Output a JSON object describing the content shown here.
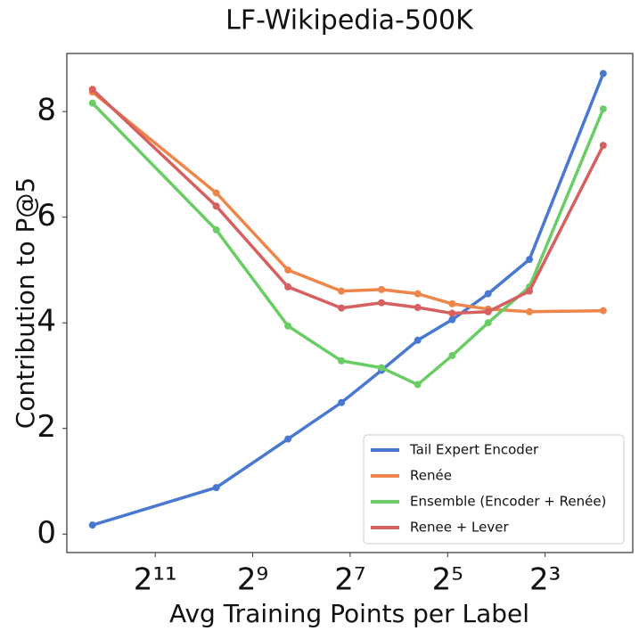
{
  "chart_data": {
    "type": "line",
    "title": "LF-Wikipedia-500K",
    "xlabel": "Avg Training Points per Label",
    "ylabel": "Contribution to P@5",
    "x": [
      5000,
      860,
      310,
      145,
      82,
      49,
      30,
      18,
      10,
      3.5
    ],
    "xscale": "log2",
    "xlim": [
      7200,
      2.3
    ],
    "xticks": [
      {
        "value": 2048,
        "label": "2¹¹"
      },
      {
        "value": 512,
        "label": "2⁹"
      },
      {
        "value": 128,
        "label": "2⁷"
      },
      {
        "value": 32,
        "label": "2⁵"
      },
      {
        "value": 8,
        "label": "2³"
      }
    ],
    "ylim": [
      -0.35,
      9.1
    ],
    "yticks": [
      0,
      2,
      4,
      6,
      8
    ],
    "grid": false,
    "legend": "lower right",
    "series": [
      {
        "name": "Tail Expert Encoder",
        "color": "#4878d0",
        "values": [
          0.17,
          0.88,
          1.8,
          2.49,
          3.1,
          3.67,
          4.06,
          4.55,
          5.2,
          8.72
        ]
      },
      {
        "name": "Renée",
        "color": "#ee854a",
        "values": [
          8.37,
          6.46,
          5.0,
          4.6,
          4.63,
          4.55,
          4.36,
          4.26,
          4.21,
          4.23
        ]
      },
      {
        "name": "Ensemble (Encoder + Renée)",
        "color": "#6acc64",
        "values": [
          8.16,
          5.76,
          3.94,
          3.28,
          3.15,
          2.83,
          3.38,
          4.0,
          4.68,
          8.05
        ]
      },
      {
        "name": "Renee + Lever",
        "color": "#d65f5f",
        "values": [
          8.42,
          6.21,
          4.68,
          4.28,
          4.38,
          4.29,
          4.18,
          4.21,
          4.6,
          7.36
        ]
      }
    ]
  }
}
